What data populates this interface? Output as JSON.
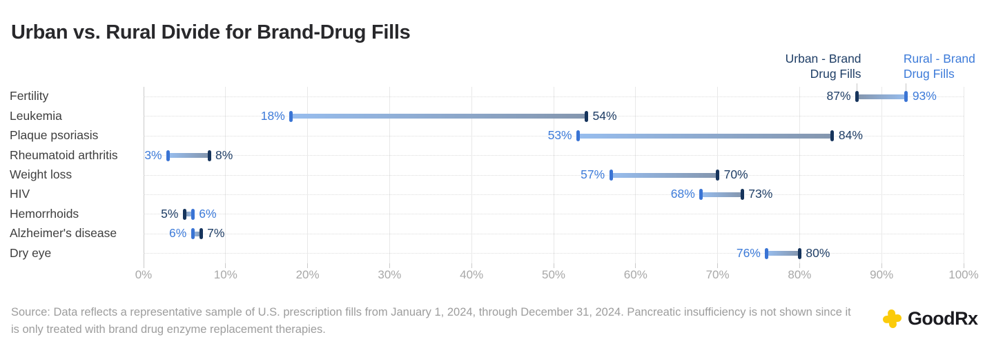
{
  "chart_data": {
    "type": "dumbbell",
    "title": "Urban vs. Rural Divide for Brand-Drug Fills",
    "categories": [
      "Fertility",
      "Leukemia",
      "Plaque psoriasis",
      "Rheumatoid arthritis",
      "Weight loss",
      "HIV",
      "Hemorrhoids",
      "Alzheimer's disease",
      "Dry eye"
    ],
    "series": [
      {
        "name": "Urban - Brand Drug Fills",
        "legend_lines": [
          "Urban - Brand",
          "Drug Fills"
        ],
        "color": "#1f3e66",
        "cap_color": "#16345c",
        "bar_end_color": "#8496ae",
        "values": [
          87,
          54,
          84,
          8,
          70,
          73,
          5,
          7,
          80
        ]
      },
      {
        "name": "Rural - Brand Drug Fills",
        "legend_lines": [
          "Rural - Brand",
          "Drug Fills"
        ],
        "color": "#3d7bd9",
        "cap_color": "#3a74d4",
        "bar_end_color": "#97bdee",
        "values": [
          93,
          18,
          53,
          3,
          57,
          68,
          6,
          6,
          76
        ]
      }
    ],
    "x_ticks": [
      "0%",
      "10%",
      "20%",
      "30%",
      "40%",
      "50%",
      "60%",
      "70%",
      "80%",
      "90%",
      "100%"
    ],
    "xlim": [
      0,
      100
    ],
    "value_suffix": "%",
    "grid": true,
    "legend_position": "top-right"
  },
  "footer": {
    "source": "Source: Data reflects a representative sample of U.S. prescription fills from January 1, 2024, through December 31, 2024. Pancreatic insufficiency is not shown since it is only treated with brand drug enzyme replacement therapies.",
    "logo_text": "GoodRx",
    "logo_color": "#fbcb0a"
  }
}
